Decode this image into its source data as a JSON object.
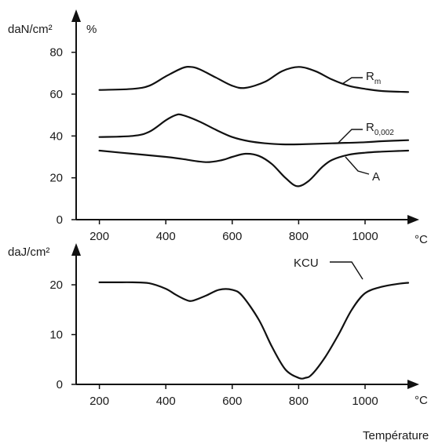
{
  "chart_data": [
    {
      "type": "line",
      "title": "",
      "xlabel": "",
      "x_unit": "°C",
      "y_units": [
        "daN/cm²",
        "%"
      ],
      "xlim": [
        130,
        1130
      ],
      "ylim": [
        0,
        90
      ],
      "x_ticks": [
        "200",
        "400",
        "600",
        "800",
        "1000"
      ],
      "y_ticks": [
        "0",
        "20",
        "40",
        "60",
        "80"
      ],
      "series": [
        {
          "name": "R",
          "subscript": "m",
          "x": [
            200,
            300,
            350,
            400,
            450,
            475,
            500,
            550,
            600,
            640,
            700,
            750,
            800,
            850,
            900,
            950,
            1000,
            1050,
            1130
          ],
          "y": [
            62,
            62.5,
            64,
            68.5,
            72.5,
            73,
            72,
            68,
            64,
            63,
            66,
            71,
            73,
            71,
            67,
            64,
            62.5,
            61.5,
            61
          ]
        },
        {
          "name": "R",
          "subscript": "0,002",
          "x": [
            200,
            300,
            350,
            400,
            430,
            450,
            500,
            550,
            600,
            650,
            700,
            750,
            800,
            900,
            1000,
            1050,
            1130
          ],
          "y": [
            39.5,
            40,
            42,
            47.5,
            50,
            50,
            47,
            43,
            39.5,
            37.5,
            36.5,
            36,
            36,
            36.5,
            37,
            37.5,
            38
          ]
        },
        {
          "name": "A",
          "subscript": "",
          "x": [
            200,
            300,
            400,
            450,
            520,
            570,
            600,
            640,
            680,
            720,
            760,
            795,
            830,
            870,
            900,
            950,
            1000,
            1050,
            1130
          ],
          "y": [
            33,
            31.5,
            30,
            29,
            27.5,
            28.5,
            30,
            31.5,
            30.5,
            26.5,
            20,
            16,
            18.5,
            25,
            28.5,
            31,
            32,
            32.5,
            33
          ]
        }
      ]
    },
    {
      "type": "line",
      "title": "",
      "xlabel": "Température",
      "x_unit": "°C",
      "y_units": [
        "daJ/cm²"
      ],
      "xlim": [
        130,
        1130
      ],
      "ylim": [
        0,
        23
      ],
      "x_ticks": [
        "200",
        "400",
        "600",
        "800",
        "1000"
      ],
      "y_ticks": [
        "0",
        "10",
        "20"
      ],
      "series": [
        {
          "name": "KCU",
          "subscript": "",
          "x": [
            200,
            250,
            300,
            350,
            400,
            430,
            460,
            480,
            520,
            560,
            600,
            630,
            680,
            720,
            760,
            800,
            820,
            840,
            880,
            920,
            960,
            1000,
            1050,
            1100,
            1130
          ],
          "y": [
            20.5,
            20.5,
            20.5,
            20.3,
            19.2,
            18,
            17,
            16.8,
            17.8,
            19,
            19,
            17.8,
            13,
            7.5,
            3,
            1.3,
            1.3,
            2,
            5.5,
            10,
            15,
            18.3,
            19.6,
            20.2,
            20.4
          ]
        }
      ]
    }
  ]
}
